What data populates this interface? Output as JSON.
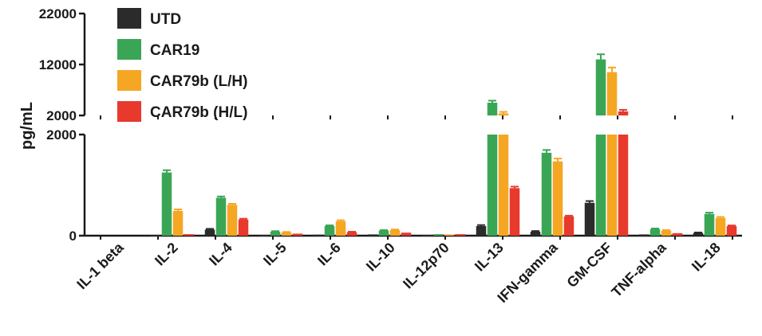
{
  "chart_data": {
    "type": "bar",
    "ylabel": "pg/mL",
    "axis_break": true,
    "upper_segment": {
      "ylim": [
        2000,
        22000
      ],
      "tick_labels": [
        "22000",
        "12000",
        "2000"
      ]
    },
    "lower_segment": {
      "ylim": [
        0,
        2000
      ],
      "tick_labels": [
        "2000",
        "0"
      ]
    },
    "categories": [
      "IL-1 beta",
      "IL-2",
      "IL-4",
      "IL-5",
      "IL-6",
      "IL-10",
      "IL-12p70",
      "IL-13",
      "IFN-gamma",
      "GM-CSF",
      "TNF-alpha",
      "IL-18"
    ],
    "legend_position": "top-left",
    "series": [
      {
        "name": "UTD",
        "color": "#2b2b2b",
        "values": [
          0,
          10,
          120,
          8,
          20,
          25,
          15,
          190,
          80,
          650,
          25,
          55
        ],
        "errors": [
          0,
          5,
          15,
          3,
          5,
          5,
          3,
          20,
          12,
          35,
          5,
          8
        ]
      },
      {
        "name": "CAR19",
        "color": "#3aa655",
        "values": [
          0,
          1250,
          750,
          80,
          190,
          100,
          30,
          4500,
          1640,
          13000,
          130,
          430
        ],
        "errors": [
          0,
          45,
          25,
          10,
          15,
          10,
          5,
          400,
          55,
          1000,
          12,
          25
        ]
      },
      {
        "name": "CAR79b (L/H)",
        "color": "#f5a623",
        "values": [
          0,
          490,
          610,
          65,
          285,
          110,
          25,
          2400,
          1470,
          10500,
          100,
          350
        ],
        "errors": [
          0,
          30,
          20,
          8,
          20,
          12,
          4,
          300,
          55,
          900,
          10,
          20
        ]
      },
      {
        "name": "CAR79b (H/L)",
        "color": "#e8392d",
        "values": [
          0,
          30,
          320,
          40,
          70,
          60,
          30,
          940,
          380,
          2800,
          50,
          190
        ],
        "errors": [
          0,
          5,
          15,
          5,
          8,
          6,
          4,
          30,
          15,
          300,
          5,
          12
        ]
      }
    ]
  }
}
